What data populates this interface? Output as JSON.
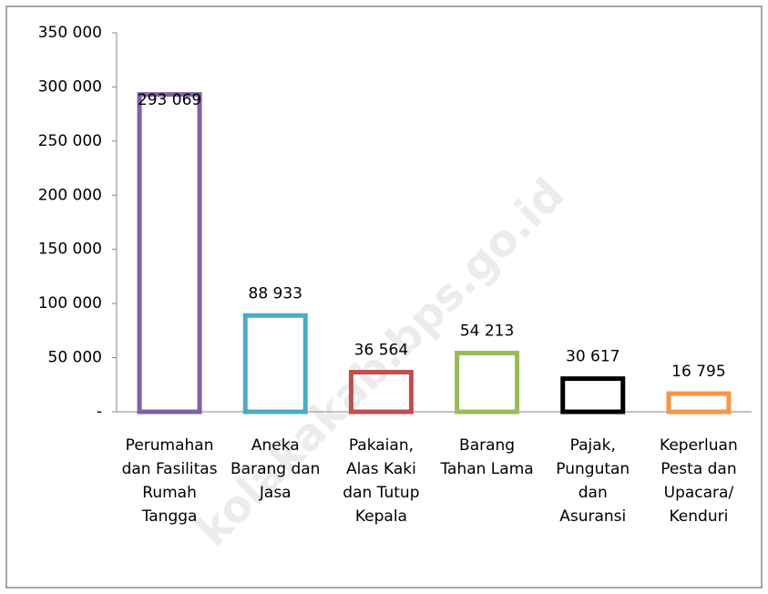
{
  "chart_data": {
    "type": "bar",
    "categories": [
      "Perumahan dan Fasilitas Rumah Tangga",
      "Aneka Barang dan Jasa",
      "Pakaian, Alas Kaki dan Tutup Kepala",
      "Barang Tahan Lama",
      "Pajak, Pungutan dan Asuransi",
      "Keperluan Pesta dan Upacara/ Kenduri"
    ],
    "values": [
      293069,
      88933,
      36564,
      54213,
      30617,
      16795
    ],
    "value_labels": [
      "293 069",
      "88 933",
      "36 564",
      "54 213",
      "30 617",
      "16 795"
    ],
    "colors": [
      "#7f60a8",
      "#4bacc6",
      "#c0504d",
      "#9bbb59",
      "#000000",
      "#f79646"
    ],
    "ylim": [
      0,
      350000
    ],
    "yticks": [
      {
        "value": 0,
        "label": "-"
      },
      {
        "value": 50000,
        "label": "50 000"
      },
      {
        "value": 100000,
        "label": "100 000"
      },
      {
        "value": 150000,
        "label": "150 000"
      },
      {
        "value": 200000,
        "label": "200 000"
      },
      {
        "value": 250000,
        "label": "250 000"
      },
      {
        "value": 300000,
        "label": "300 000"
      },
      {
        "value": 350000,
        "label": "350 000"
      }
    ],
    "grid": false,
    "watermark": "kolakakab.bps.go.id"
  }
}
